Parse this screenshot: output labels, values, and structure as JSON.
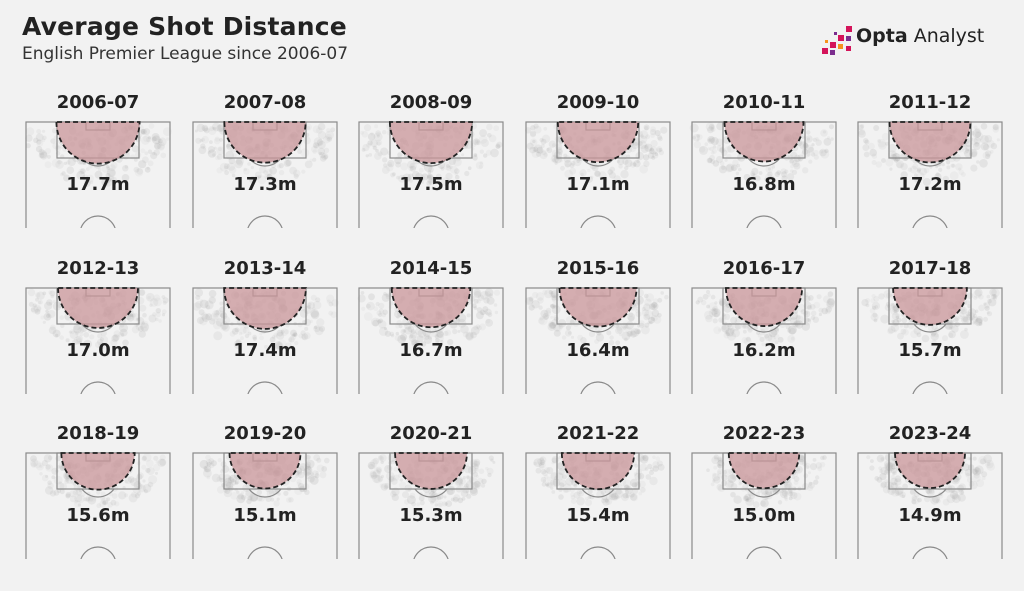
{
  "header": {
    "title": "Average Shot Distance",
    "subtitle": "English Premier League since 2006-07"
  },
  "logo": {
    "brand_bold": "Opta",
    "brand_light": "Analyst",
    "accent_colors": [
      "#d4145a",
      "#7b2d8e",
      "#f7931e"
    ]
  },
  "colors": {
    "background": "#f2f2f2",
    "pitch_line": "#8a8a8a",
    "zone_fill": "#c9959a",
    "zone_outline": "#222222",
    "shot_cloud": "#9a9a9a"
  },
  "chart_data": {
    "type": "small-multiples",
    "title": "Average Shot Distance",
    "subtitle": "English Premier League since 2006-07",
    "unit": "m",
    "seasons": [
      {
        "season": "2006-07",
        "label": "17.7m",
        "value": 17.7
      },
      {
        "season": "2007-08",
        "label": "17.3m",
        "value": 17.3
      },
      {
        "season": "2008-09",
        "label": "17.5m",
        "value": 17.5
      },
      {
        "season": "2009-10",
        "label": "17.1m",
        "value": 17.1
      },
      {
        "season": "2010-11",
        "label": "16.8m",
        "value": 16.8
      },
      {
        "season": "2011-12",
        "label": "17.2m",
        "value": 17.2
      },
      {
        "season": "2012-13",
        "label": "17.0m",
        "value": 17.0
      },
      {
        "season": "2013-14",
        "label": "17.4m",
        "value": 17.4
      },
      {
        "season": "2014-15",
        "label": "16.7m",
        "value": 16.7
      },
      {
        "season": "2015-16",
        "label": "16.4m",
        "value": 16.4
      },
      {
        "season": "2016-17",
        "label": "16.2m",
        "value": 16.2
      },
      {
        "season": "2017-18",
        "label": "15.7m",
        "value": 15.7
      },
      {
        "season": "2018-19",
        "label": "15.6m",
        "value": 15.6
      },
      {
        "season": "2019-20",
        "label": "15.1m",
        "value": 15.1
      },
      {
        "season": "2020-21",
        "label": "15.3m",
        "value": 15.3
      },
      {
        "season": "2021-22",
        "label": "15.4m",
        "value": 15.4
      },
      {
        "season": "2022-23",
        "label": "15.0m",
        "value": 15.0
      },
      {
        "season": "2023-24",
        "label": "14.9m",
        "value": 14.9
      }
    ]
  }
}
